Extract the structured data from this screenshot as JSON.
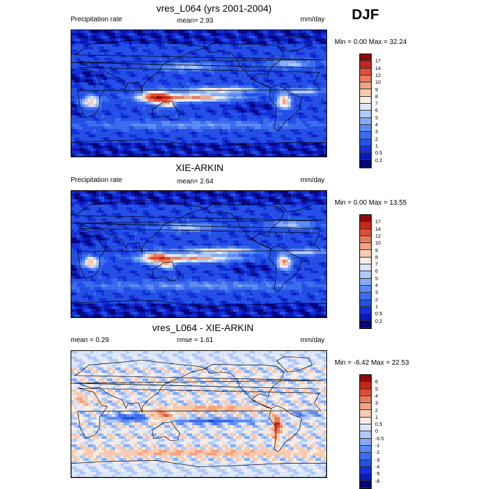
{
  "season": "DJF",
  "colors": {
    "abs": [
      "#06067c",
      "#0a1ab8",
      "#1530d8",
      "#2450e6",
      "#3b6cee",
      "#5c8af2",
      "#86aaf4",
      "#b0c9f7",
      "#dbe6fb",
      "#fbece0",
      "#f7cbb0",
      "#f1a584",
      "#e97a5c",
      "#dc4f38",
      "#c4281c",
      "#8e0a0a"
    ],
    "diff": [
      "#06067c",
      "#0a1ab8",
      "#1530d8",
      "#2450e6",
      "#3b6cee",
      "#5c8af2",
      "#86aaf4",
      "#b0c9f7",
      "#dbe6fb",
      "#fbece0",
      "#f7cbb0",
      "#f1a584",
      "#e97a5c",
      "#dc4f38",
      "#c4281c",
      "#8e0a0a"
    ]
  },
  "panels": [
    {
      "title": "vres_L064 (yrs 2001-2004)",
      "left_label": "Precipitation rate",
      "center_label": "mean=   2.93",
      "right_label": "mm/day",
      "minmax_label": "Min =   0.00 Max =  32.24",
      "ticks": [
        "17",
        "14",
        "12",
        "10",
        "9",
        "8",
        "7",
        "6",
        "5",
        "4",
        "3",
        "2",
        "1",
        "0.5",
        "0.2"
      ]
    },
    {
      "title": "XIE-ARKIN",
      "left_label": "Precipitation rate",
      "center_label": "mean=   2.64",
      "right_label": "mm/day",
      "minmax_label": "Min =   0.00 Max =  13.55",
      "ticks": [
        "17",
        "14",
        "12",
        "10",
        "9",
        "8",
        "7",
        "6",
        "5",
        "4",
        "3",
        "2",
        "1",
        "0.5",
        "0.2"
      ]
    },
    {
      "title": "vres_L064 - XIE-ARKIN",
      "left_label": "mean =   0.29",
      "center_label": "rmse =   1.61",
      "right_label": "mm/day",
      "minmax_label": "Min =  -6.42 Max =  22.53",
      "ticks": [
        "6",
        "5",
        "4",
        "3",
        "2",
        "1",
        "0.5",
        "0",
        "-0.5",
        "-1",
        "-2",
        "-3",
        "-4",
        "-5",
        "-6"
      ]
    }
  ],
  "chart_data": [
    {
      "type": "heatmap",
      "title": "vres_L064 (yrs 2001-2004)",
      "variable": "Precipitation rate",
      "units": "mm/day",
      "mean": 2.93,
      "min": 0.0,
      "max": 32.24,
      "levels": [
        0.2,
        0.5,
        1,
        2,
        3,
        4,
        5,
        6,
        7,
        8,
        9,
        10,
        12,
        14,
        17
      ]
    },
    {
      "type": "heatmap",
      "title": "XIE-ARKIN",
      "variable": "Precipitation rate",
      "units": "mm/day",
      "mean": 2.64,
      "min": 0.0,
      "max": 13.55,
      "levels": [
        0.2,
        0.5,
        1,
        2,
        3,
        4,
        5,
        6,
        7,
        8,
        9,
        10,
        12,
        14,
        17
      ]
    },
    {
      "type": "heatmap",
      "title": "vres_L064 - XIE-ARKIN",
      "units": "mm/day",
      "mean": 0.29,
      "rmse": 1.61,
      "min": -6.42,
      "max": 22.53,
      "levels": [
        -6,
        -5,
        -4,
        -3,
        -2,
        -1,
        -0.5,
        0,
        0.5,
        1,
        2,
        3,
        4,
        5,
        6
      ]
    }
  ]
}
